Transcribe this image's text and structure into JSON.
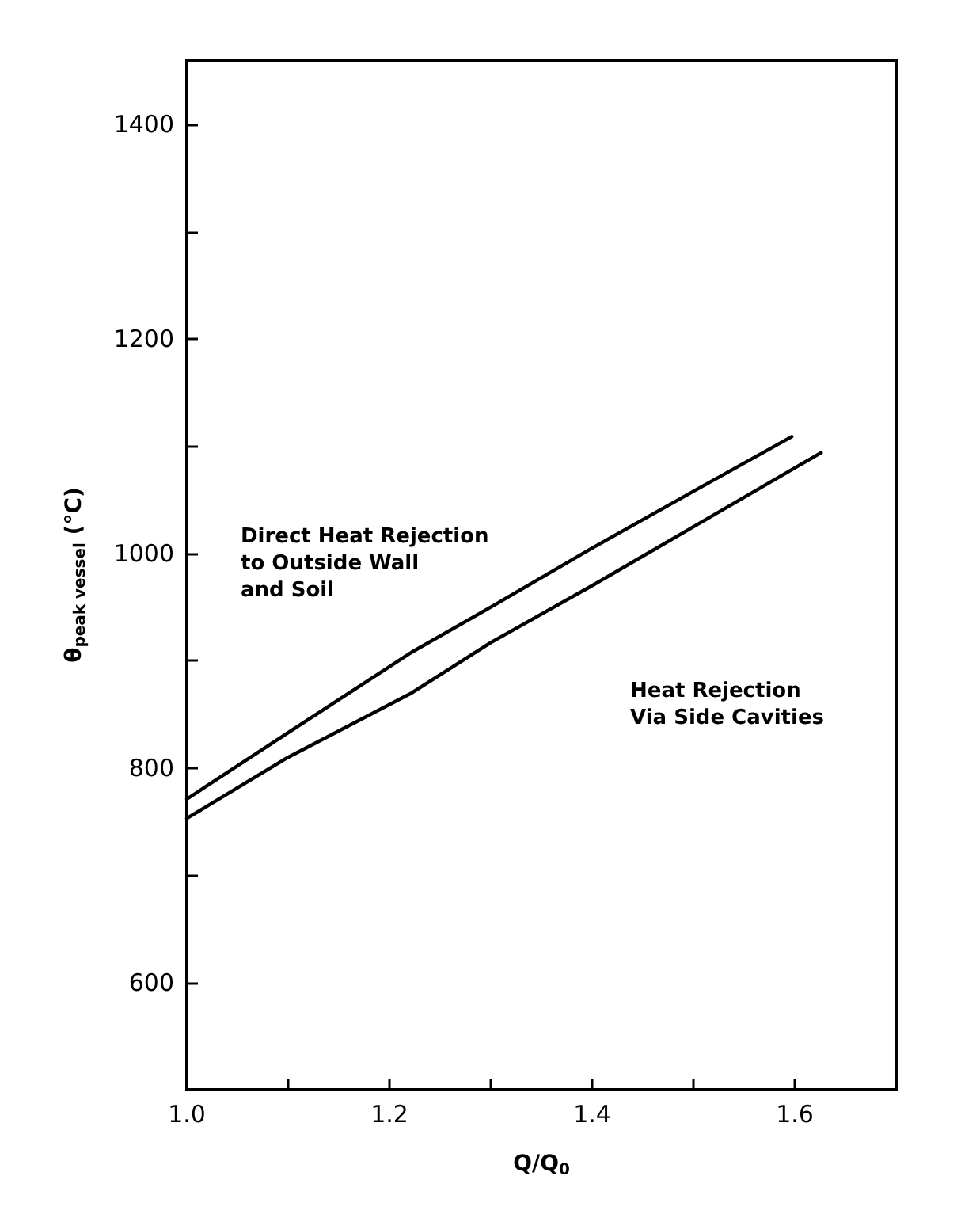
{
  "chart_data": {
    "type": "line",
    "xlabel": "Q/Q$_{0}$",
    "ylabel": "θ$_{peak vessel}$ (°C)",
    "xlim": [
      1.0,
      1.7
    ],
    "xticks": [
      {
        "value": 1.0,
        "label": "1.0"
      },
      {
        "value": 1.1,
        "label": null
      },
      {
        "value": 1.2,
        "label": "1.2"
      },
      {
        "value": 1.3,
        "label": null
      },
      {
        "value": 1.4,
        "label": "1.4"
      },
      {
        "value": 1.5,
        "label": null
      },
      {
        "value": 1.6,
        "label": "1.6"
      }
    ],
    "ylim": [
      500,
      1460
    ],
    "yticks": [
      600,
      {
        "value": 700,
        "label": null
      },
      800,
      {
        "value": 900,
        "label": null
      },
      1000,
      {
        "value": 1100,
        "label": null
      },
      1200,
      {
        "value": 1300,
        "label": null
      },
      1400
    ],
    "series": [
      {
        "color": "#000000",
        "x": [
          1.0,
          1.1,
          1.222,
          1.3,
          1.4,
          1.5,
          1.597
        ],
        "values": [
          771,
          833,
          908,
          950,
          1005,
          1058,
          1109
        ]
      },
      {
        "color": "#000000",
        "x": [
          1.0,
          1.1,
          1.222,
          1.3,
          1.4,
          1.5,
          1.626
        ],
        "values": [
          753,
          810,
          870,
          917,
          970,
          1025,
          1094
        ]
      }
    ],
    "annotations": [
      "Direct Heat Rejection\nto Outside Wall\nand Soil",
      "Heat Rejection\nVia Side Cavities"
    ],
    "marker": "none",
    "line_style": "solid"
  }
}
